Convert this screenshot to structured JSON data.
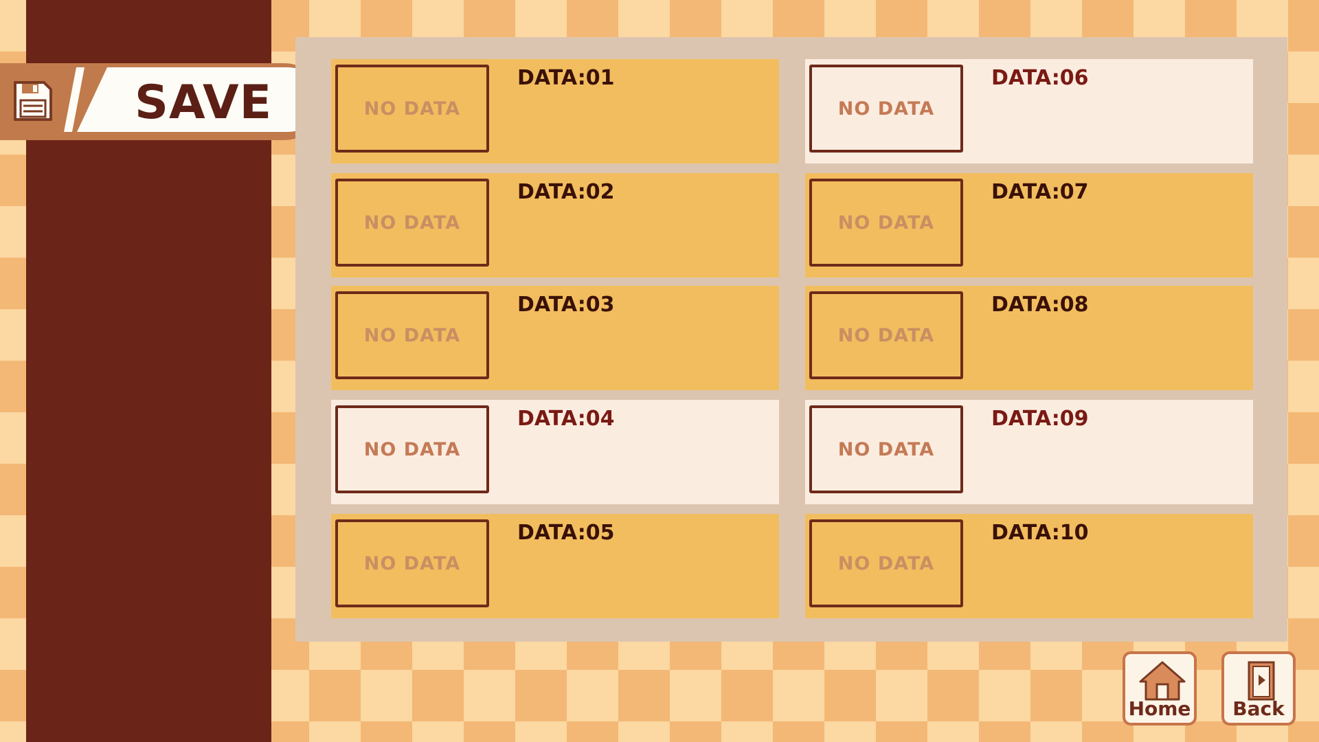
{
  "header": {
    "title": "SAVE",
    "icon": "floppy-disk-icon"
  },
  "slots": [
    {
      "label": "DATA:01",
      "thumb": "NO DATA"
    },
    {
      "label": "DATA:02",
      "thumb": "NO DATA"
    },
    {
      "label": "DATA:03",
      "thumb": "NO DATA"
    },
    {
      "label": "DATA:04",
      "thumb": "NO DATA"
    },
    {
      "label": "DATA:05",
      "thumb": "NO DATA"
    },
    {
      "label": "DATA:06",
      "thumb": "NO DATA"
    },
    {
      "label": "DATA:07",
      "thumb": "NO DATA"
    },
    {
      "label": "DATA:08",
      "thumb": "NO DATA"
    },
    {
      "label": "DATA:09",
      "thumb": "NO DATA"
    },
    {
      "label": "DATA:10",
      "thumb": "NO DATA"
    }
  ],
  "nav": {
    "home_label": "Home",
    "home_icon": "home-icon",
    "back_label": "Back",
    "back_icon": "exit-door-icon"
  },
  "colors": {
    "sidebar": "#6a2418",
    "slot": "#f2bd5e",
    "slot_highlight": "#fbece0",
    "panel": "#dcc5b0",
    "text": "#3a1108"
  }
}
